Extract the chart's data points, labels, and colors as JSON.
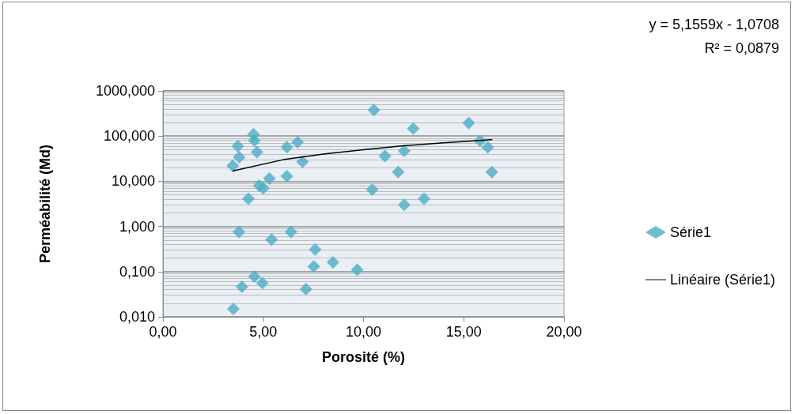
{
  "chart_data": {
    "type": "scatter",
    "xlabel": "Porosité (%)",
    "ylabel": "Perméabilité (Md)",
    "annotations": [
      "y = 5,1559x - 1,0708",
      "R² = 0,0879"
    ],
    "xlim": [
      0,
      20
    ],
    "xticks": [
      {
        "value": 0,
        "label": "0,00"
      },
      {
        "value": 5,
        "label": "5,00"
      },
      {
        "value": 10,
        "label": "10,00"
      },
      {
        "value": 15,
        "label": "15,00"
      },
      {
        "value": 20,
        "label": "20,00"
      }
    ],
    "ylim": [
      0.01,
      1000
    ],
    "yticks": [
      {
        "value": 0.01,
        "label": "0,010"
      },
      {
        "value": 0.1,
        "label": "0,100"
      },
      {
        "value": 1,
        "label": "1,000"
      },
      {
        "value": 10,
        "label": "10,000"
      },
      {
        "value": 100,
        "label": "100,000"
      },
      {
        "value": 1000,
        "label": "1000,000"
      }
    ],
    "log": "y",
    "grid": "y",
    "legend": "right",
    "marker": "diamond",
    "series": [
      {
        "name": "Série1",
        "color": "#4bacc6",
        "x": [
          3.73,
          4.52,
          4.56,
          4.69,
          3.8,
          3.48,
          6.18,
          6.71,
          6.96,
          5.31,
          4.8,
          5.0,
          6.18,
          4.26,
          3.79,
          5.42,
          6.38,
          7.59,
          7.52,
          8.48,
          9.69,
          4.56,
          4.96,
          3.94,
          7.13,
          3.51,
          10.52,
          12.48,
          15.25,
          15.81,
          16.2,
          16.4,
          11.07,
          12.03,
          11.73,
          10.44,
          12.03,
          13.02
        ],
        "values": [
          60,
          109,
          79,
          44,
          34,
          22,
          57,
          73,
          27,
          11.5,
          8,
          7,
          13,
          4.1,
          0.76,
          0.51,
          0.76,
          0.31,
          0.13,
          0.16,
          0.11,
          0.078,
          0.056,
          0.046,
          0.041,
          0.015,
          376,
          147,
          194,
          78,
          56,
          16,
          36,
          47,
          16,
          6.5,
          3.0,
          4.1
        ]
      },
      {
        "name": "Linéaire (Série1)",
        "type": "line",
        "color": "#000000",
        "marker": "none",
        "line_style": "solid",
        "x": [
          3.5,
          6,
          8,
          10,
          12,
          14,
          16.4
        ],
        "values": [
          17,
          30,
          40,
          50,
          61,
          71,
          83
        ]
      }
    ]
  }
}
